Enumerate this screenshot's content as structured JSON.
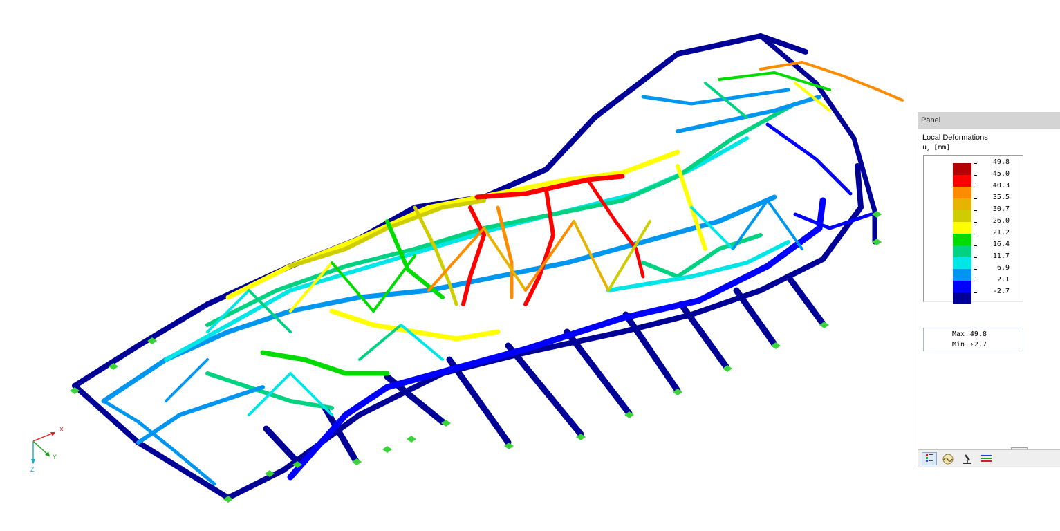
{
  "axes": {
    "x": "X",
    "y": "Y",
    "z": "Z"
  },
  "panel": {
    "title": "Panel",
    "result_title": "Local Deformations",
    "result_unit": "u_z [mm]",
    "legend": [
      {
        "value": "49.8",
        "color": "#b40000"
      },
      {
        "value": "45.0",
        "color": "#ff0000"
      },
      {
        "value": "40.3",
        "color": "#ff8c00"
      },
      {
        "value": "35.5",
        "color": "#e6b400"
      },
      {
        "value": "30.7",
        "color": "#cdcd00"
      },
      {
        "value": "26.0",
        "color": "#ffff00"
      },
      {
        "value": "21.2",
        "color": "#00dc00"
      },
      {
        "value": "16.4",
        "color": "#00d282"
      },
      {
        "value": "11.7",
        "color": "#00e6e6"
      },
      {
        "value": "6.9",
        "color": "#0096f0"
      },
      {
        "value": "2.1",
        "color": "#0000ff"
      },
      {
        "value": "-2.7",
        "color": "#000096"
      }
    ],
    "max_label": "Max",
    "max_value": "49.8",
    "min_label": "Min",
    "min_value": "-2.7",
    "colon": ":",
    "toolbar_icons": [
      "color-scale-icon",
      "deformation-icon",
      "microscope-icon",
      "result-lines-icon"
    ],
    "zoom_icon": "zoom-magnifier-icon"
  },
  "colors": {
    "support": "#3cd23c",
    "panel_header": "#d4d4d4"
  }
}
